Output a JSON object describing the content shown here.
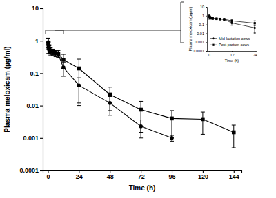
{
  "chart_data": [
    {
      "type": "line",
      "log": "y",
      "grid": false,
      "x_label": "Time (h)",
      "y_label": "Plasma meloxicam (µg/ml)",
      "xlim": [
        -4,
        150
      ],
      "xticks": [
        0,
        24,
        48,
        72,
        96,
        120,
        144
      ],
      "ylim": [
        0.0001,
        10
      ],
      "yticks": [
        0.0001,
        0.001,
        0.01,
        0.1,
        1,
        10
      ],
      "series": [
        {
          "color": "#000000",
          "marker": "circle",
          "line_style": "solid",
          "x": [
            0.25,
            0.5,
            1,
            2,
            4,
            6,
            8,
            12,
            24,
            48,
            72,
            96
          ],
          "values": [
            0.9,
            0.75,
            0.6,
            0.5,
            0.45,
            0.42,
            0.38,
            0.15,
            0.042,
            0.012,
            0.0023,
            0.001
          ],
          "errors": [
            0.3,
            0.2,
            0.15,
            0.1,
            0.08,
            0.08,
            0.07,
            0.07,
            0.03,
            0.007,
            0.0013,
            0.0002
          ]
        },
        {
          "color": "#000000",
          "marker": "square",
          "line_style": "solid",
          "x": [
            0.25,
            0.5,
            1,
            2,
            4,
            6,
            8,
            12,
            24,
            48,
            72,
            96,
            120,
            144
          ],
          "values": [
            0.8,
            0.65,
            0.55,
            0.48,
            0.45,
            0.42,
            0.4,
            0.26,
            0.14,
            0.022,
            0.0075,
            0.004,
            0.0038,
            0.0015
          ],
          "errors": [
            0.4,
            0.25,
            0.15,
            0.12,
            0.1,
            0.1,
            0.1,
            0.12,
            0.13,
            0.015,
            0.006,
            0.003,
            0.0025,
            0.001
          ]
        }
      ]
    },
    {
      "type": "line",
      "log": "y",
      "grid": false,
      "legend": "lower left",
      "x_label": "Time (h)",
      "y_label": "Plasma meloxicam (µg/ml)",
      "xlim": [
        -1,
        25
      ],
      "xticks": [
        0,
        12,
        24
      ],
      "ylim": [
        0.0001,
        10
      ],
      "yticks": [
        0.0001,
        0.001,
        0.01,
        0.1,
        1,
        10
      ],
      "series": [
        {
          "name": "Mid-lactation cows",
          "color": "#000000",
          "marker": "circle",
          "line_style": "solid",
          "x": [
            0.25,
            0.5,
            1,
            2,
            4,
            6,
            8,
            12,
            24
          ],
          "values": [
            0.9,
            0.75,
            0.6,
            0.5,
            0.45,
            0.42,
            0.38,
            0.15,
            0.042
          ],
          "errors": [
            0.3,
            0.2,
            0.15,
            0.1,
            0.08,
            0.08,
            0.07,
            0.07,
            0.03
          ]
        },
        {
          "name": "Post-partum cows",
          "color": "#000000",
          "marker": "square",
          "line_style": "solid",
          "x": [
            0.25,
            0.5,
            1,
            2,
            4,
            6,
            8,
            12,
            24
          ],
          "values": [
            0.8,
            0.65,
            0.55,
            0.48,
            0.45,
            0.42,
            0.4,
            0.26,
            0.14
          ],
          "errors": [
            0.4,
            0.25,
            0.15,
            0.12,
            0.1,
            0.1,
            0.1,
            0.12,
            0.13
          ]
        }
      ]
    }
  ]
}
